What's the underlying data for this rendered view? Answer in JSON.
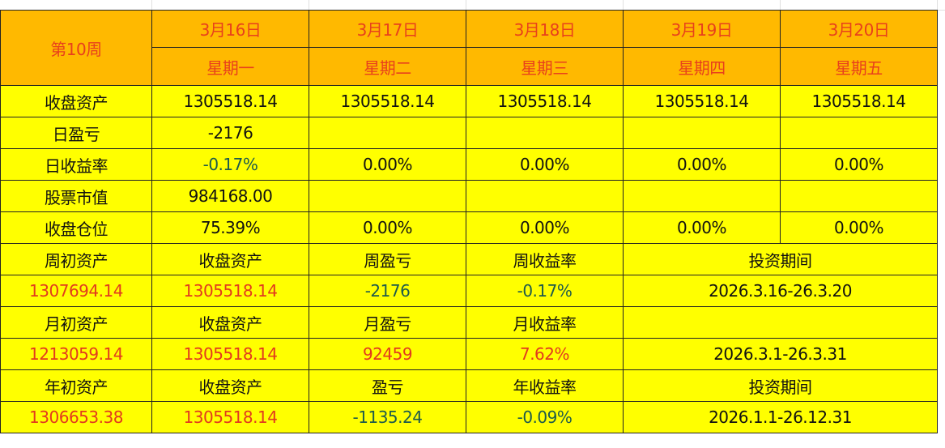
{
  "week_label": "第10周",
  "days": [
    {
      "date": "3月16日",
      "weekday": "星期一"
    },
    {
      "date": "3月17日",
      "weekday": "星期二"
    },
    {
      "date": "3月18日",
      "weekday": "星期三"
    },
    {
      "date": "3月19日",
      "weekday": "星期四"
    },
    {
      "date": "3月20日",
      "weekday": "星期五"
    }
  ],
  "daily_rows": [
    {
      "label": "收盘资产",
      "values": [
        "1305518.14",
        "1305518.14",
        "1305518.14",
        "1305518.14",
        "1305518.14"
      ]
    },
    {
      "label": "日盈亏",
      "values": [
        "-2176",
        "",
        "",
        "",
        ""
      ]
    },
    {
      "label": "日收益率",
      "values": [
        "-0.17%",
        "0.00%",
        "0.00%",
        "0.00%",
        "0.00%"
      ]
    },
    {
      "label": "股票市值",
      "values": [
        "984168.00",
        "",
        "",
        "",
        ""
      ]
    },
    {
      "label": "收盘仓位",
      "values": [
        "75.39%",
        "0.00%",
        "0.00%",
        "0.00%",
        "0.00%"
      ]
    }
  ],
  "week": {
    "headers": [
      "周初资产",
      "收盘资产",
      "周盈亏",
      "周收益率",
      "投资期间"
    ],
    "values": [
      "1307694.14",
      "1305518.14",
      "-2176",
      "-0.17%",
      "2026.3.16-26.3.20"
    ]
  },
  "month": {
    "headers": [
      "月初资产",
      "收盘资产",
      "月盈亏",
      "月收益率",
      ""
    ],
    "values": [
      "1213059.14",
      "1305518.14",
      "92459",
      "7.62%",
      "2026.3.1-26.3.31"
    ]
  },
  "year": {
    "headers": [
      "年初资产",
      "收盘资产",
      "盈亏",
      "年收益率",
      "投资期间"
    ],
    "values": [
      "1306653.38",
      "1305518.14",
      "-1135.24",
      "-0.09%",
      "2026.1.1-26.12.31"
    ]
  },
  "colors": {
    "header_bg": "#ffb900",
    "header_text": "#e8401c",
    "cell_bg": "#ffff00",
    "positive": "#e23a1e",
    "negative": "#1d5a4c"
  }
}
